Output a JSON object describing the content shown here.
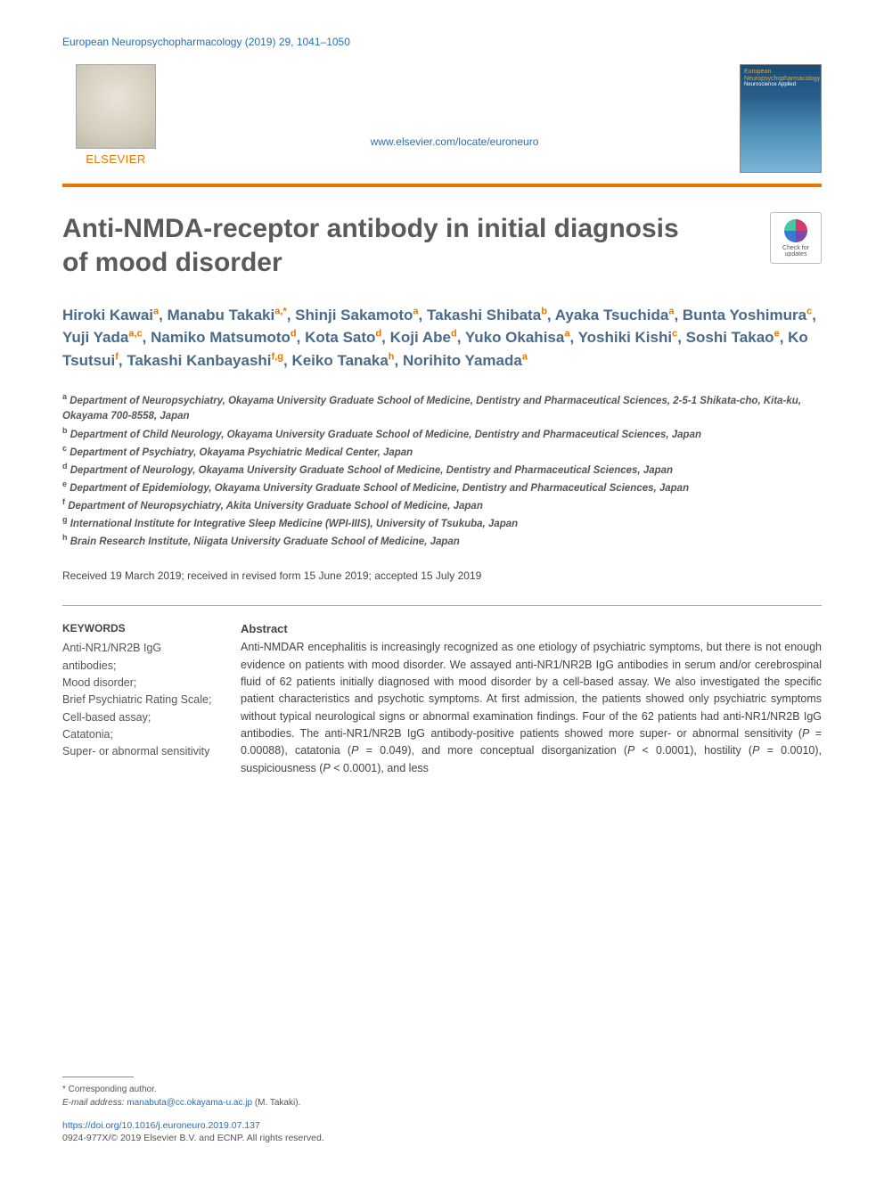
{
  "header": {
    "citation": "European Neuropsychopharmacology (2019) 29, 1041–1050",
    "publisher_label": "ELSEVIER",
    "journal_url": "www.elsevier.com/locate/euroneuro",
    "cover_title": "European Neuropsychopharmacology",
    "cover_subtitle": "Neuroscience Applied",
    "header_bar_color": "#2a6db5",
    "publisher_color": "#e97600",
    "rule_color": "#e97600"
  },
  "check_updates": {
    "line1": "Check for",
    "line2": "updates"
  },
  "title": "Anti-NMDA-receptor antibody in initial diagnosis of mood disorder",
  "title_style": {
    "fontsize": 30,
    "color": "#5a5a5a",
    "weight": 600
  },
  "authors_style": {
    "fontsize": 17,
    "color": "#4a6a8a",
    "sup_color": "#e97600"
  },
  "authors": [
    {
      "name": "Hiroki Kawai",
      "affs": [
        "a"
      ]
    },
    {
      "name": "Manabu Takaki",
      "affs": [
        "a",
        "*"
      ]
    },
    {
      "name": "Shinji Sakamoto",
      "affs": [
        "a"
      ]
    },
    {
      "name": "Takashi Shibata",
      "affs": [
        "b"
      ]
    },
    {
      "name": "Ayaka Tsuchida",
      "affs": [
        "a"
      ]
    },
    {
      "name": "Bunta Yoshimura",
      "affs": [
        "c"
      ]
    },
    {
      "name": "Yuji Yada",
      "affs": [
        "a",
        "c"
      ]
    },
    {
      "name": "Namiko Matsumoto",
      "affs": [
        "d"
      ]
    },
    {
      "name": "Kota Sato",
      "affs": [
        "d"
      ]
    },
    {
      "name": "Koji Abe",
      "affs": [
        "d"
      ]
    },
    {
      "name": "Yuko Okahisa",
      "affs": [
        "a"
      ]
    },
    {
      "name": "Yoshiki Kishi",
      "affs": [
        "c"
      ]
    },
    {
      "name": "Soshi Takao",
      "affs": [
        "e"
      ]
    },
    {
      "name": "Ko Tsutsui",
      "affs": [
        "f"
      ]
    },
    {
      "name": "Takashi Kanbayashi",
      "affs": [
        "f",
        "g"
      ]
    },
    {
      "name": "Keiko Tanaka",
      "affs": [
        "h"
      ]
    },
    {
      "name": "Norihito Yamada",
      "affs": [
        "a"
      ]
    }
  ],
  "affiliations": {
    "a": "Department of Neuropsychiatry, Okayama University Graduate School of Medicine, Dentistry and Pharmaceutical Sciences, 2-5-1 Shikata-cho, Kita-ku, Okayama 700-8558, Japan",
    "b": "Department of Child Neurology, Okayama University Graduate School of Medicine, Dentistry and Pharmaceutical Sciences, Japan",
    "c": "Department of Psychiatry, Okayama Psychiatric Medical Center, Japan",
    "d": "Department of Neurology, Okayama University Graduate School of Medicine, Dentistry and Pharmaceutical Sciences, Japan",
    "e": "Department of Epidemiology, Okayama University Graduate School of Medicine, Dentistry and Pharmaceutical Sciences, Japan",
    "f": "Department of Neuropsychiatry, Akita University Graduate School of Medicine, Japan",
    "g": "International Institute for Integrative Sleep Medicine (WPI-IIIS), University of Tsukuba, Japan",
    "h": "Brain Research Institute, Niigata University Graduate School of Medicine, Japan"
  },
  "dates": "Received 19 March 2019; received in revised form 15 June 2019; accepted 15 July 2019",
  "keywords": {
    "heading": "KEYWORDS",
    "items": [
      "Anti-NR1/NR2B IgG antibodies;",
      "Mood disorder;",
      "Brief Psychiatric Rating Scale;",
      "Cell-based assay;",
      "Catatonia;",
      "Super- or abnormal sensitivity"
    ]
  },
  "abstract": {
    "heading": "Abstract",
    "text_parts": [
      "Anti-NMDAR encephalitis is increasingly recognized as one etiology of psychiatric symptoms, but there is not enough evidence on patients with mood disorder. We assayed anti-NR1/NR2B IgG antibodies in serum and/or cerebrospinal fluid of 62 patients initially diagnosed with mood disorder by a cell-based assay. We also investigated the specific patient characteristics and psychotic symptoms. At first admission, the patients showed only psychiatric symptoms without typical neurological signs or abnormal examination findings. Four of the 62 patients had anti-NR1/NR2B IgG antibodies. The anti-NR1/NR2B IgG antibody-positive patients showed more super- or abnormal sensitivity (",
      "P",
      " = 0.00088), catatonia (",
      "P",
      " = 0.049), and more conceptual disorganization (",
      "P",
      " < 0.0001), hostility (",
      "P",
      " = 0.0010), suspiciousness (",
      "P",
      " < 0.0001), and less"
    ]
  },
  "footnote": {
    "corr_label": "* Corresponding author.",
    "email_label": "E-mail address:",
    "email": "manabuta@cc.okayama-u.ac.jp",
    "email_person": "(M. Takaki)."
  },
  "footer": {
    "doi": "https://doi.org/10.1016/j.euroneuro.2019.07.137",
    "copyright": "0924-977X/© 2019 Elsevier B.V. and ECNP. All rights reserved."
  }
}
